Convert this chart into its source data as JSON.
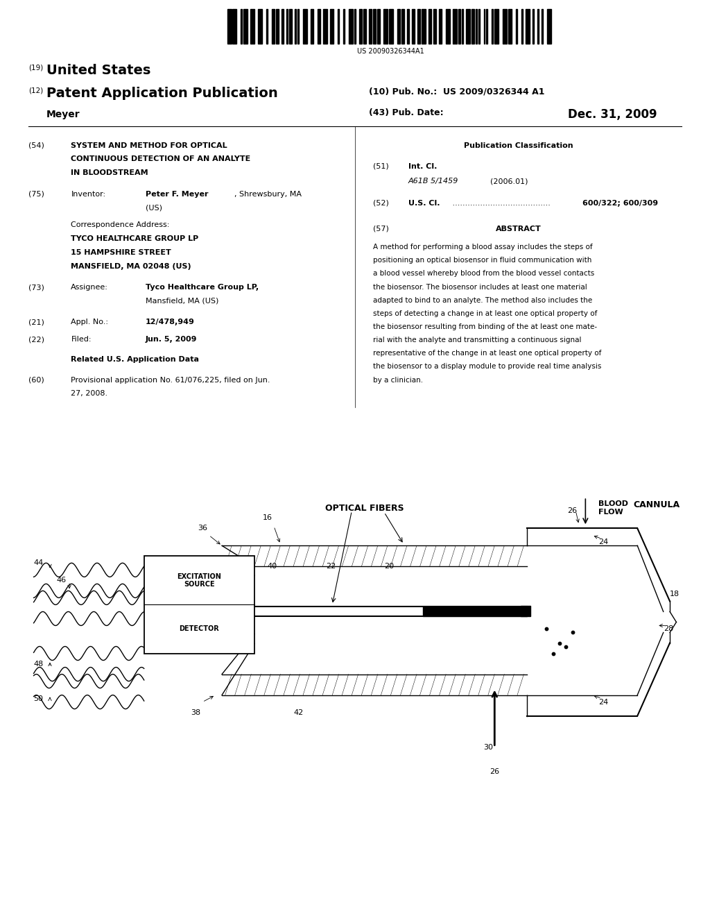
{
  "bg_color": "#ffffff",
  "barcode_text": "US 20090326344A1",
  "header_19": "(19)",
  "header_us": "United States",
  "header_12": "(12)",
  "header_pat": "Patent Application Publication",
  "header_10": "(10) Pub. No.:  US 2009/0326344 A1",
  "header_43": "(43) Pub. Date:",
  "header_date": "Dec. 31, 2009",
  "header_name": "Meyer"
}
